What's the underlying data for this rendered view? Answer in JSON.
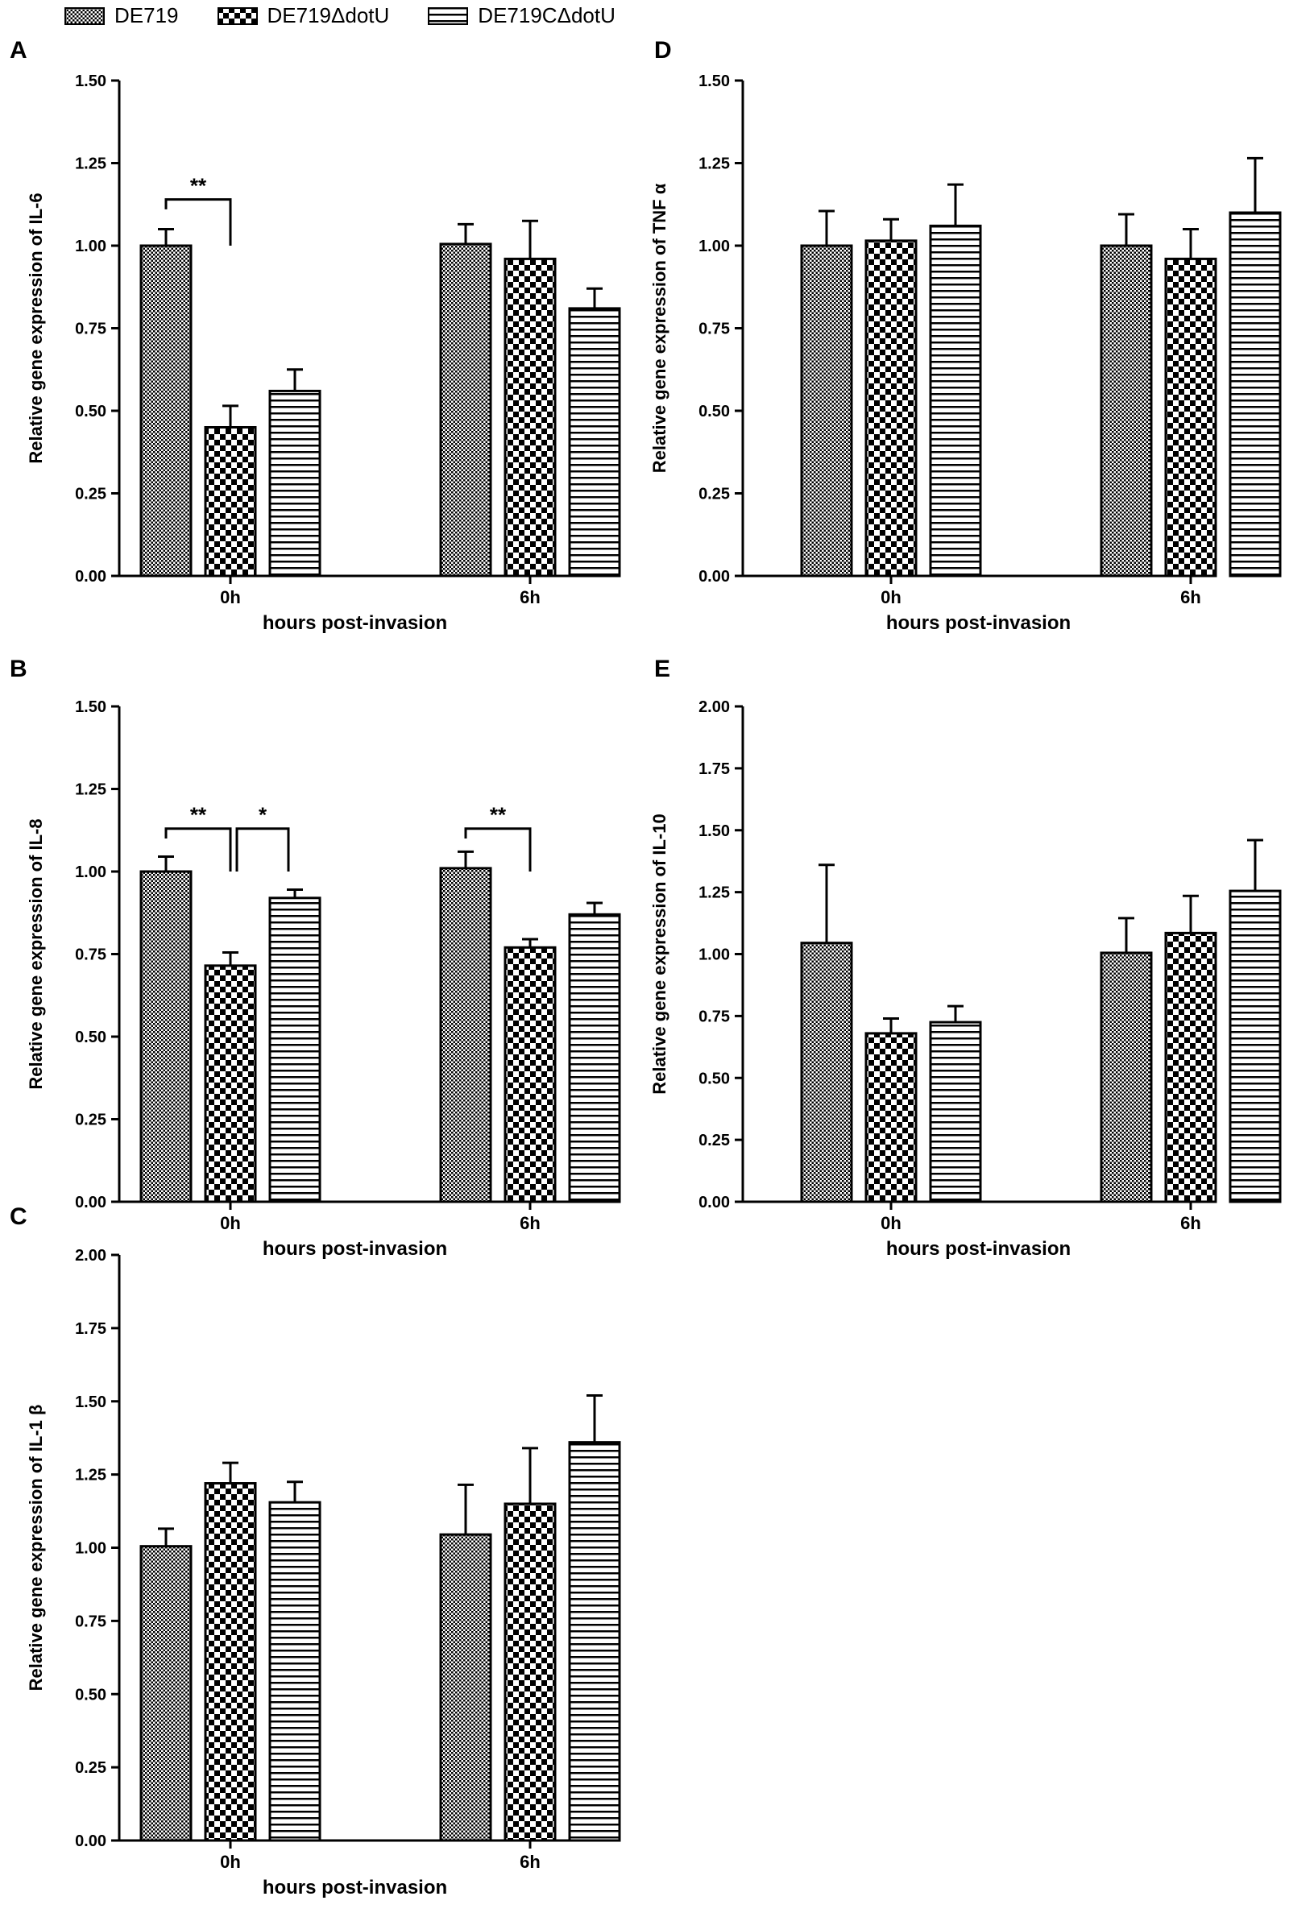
{
  "legend": [
    {
      "label": "DE719",
      "pattern": "dotted"
    },
    {
      "label": "DE719ΔdotU",
      "pattern": "checker"
    },
    {
      "label": "DE719CΔdotU",
      "pattern": "hlines"
    }
  ],
  "colors": {
    "bar_outline": "#000000",
    "background": "#ffffff"
  },
  "chart_data": [
    {
      "panel": "A",
      "type": "bar",
      "ylabel": "Relative gene expression of IL-6",
      "xlabel": "hours post-invasion",
      "categories": [
        "0h",
        "6h"
      ],
      "ylim": [
        0,
        1.5
      ],
      "yticks": [
        "0.00",
        "0.25",
        "0.50",
        "0.75",
        "1.00",
        "1.25",
        "1.50"
      ],
      "series": [
        {
          "name": "DE719",
          "values": [
            1.0,
            1.005
          ],
          "errors": [
            0.05,
            0.06
          ]
        },
        {
          "name": "DE719ΔdotU",
          "values": [
            0.45,
            0.96
          ],
          "errors": [
            0.065,
            0.115
          ]
        },
        {
          "name": "DE719CΔdotU",
          "values": [
            0.56,
            0.81
          ],
          "errors": [
            0.065,
            0.06
          ]
        }
      ],
      "significance": [
        {
          "category": 0,
          "from": 0,
          "to": 1,
          "label": "**",
          "y": 1.14,
          "drop_right": 1.0
        }
      ]
    },
    {
      "panel": "B",
      "type": "bar",
      "ylabel": "Relative gene expression of IL-8",
      "xlabel": "hours post-invasion",
      "categories": [
        "0h",
        "6h"
      ],
      "ylim": [
        0,
        1.5
      ],
      "yticks": [
        "0.00",
        "0.25",
        "0.50",
        "0.75",
        "1.00",
        "1.25",
        "1.50"
      ],
      "series": [
        {
          "name": "DE719",
          "values": [
            1.0,
            1.01
          ],
          "errors": [
            0.045,
            0.05
          ]
        },
        {
          "name": "DE719ΔdotU",
          "values": [
            0.715,
            0.77
          ],
          "errors": [
            0.04,
            0.025
          ]
        },
        {
          "name": "DE719CΔdotU",
          "values": [
            0.92,
            0.87
          ],
          "errors": [
            0.025,
            0.035
          ]
        }
      ],
      "significance": [
        {
          "category": 0,
          "from": 0,
          "to": 1,
          "label": "**",
          "y": 1.13,
          "drop_right": 1.0
        },
        {
          "category": 0,
          "from": 1,
          "to": 2,
          "label": "*",
          "y": 1.13,
          "drop_left": 1.0,
          "drop_right": 1.0
        },
        {
          "category": 1,
          "from": 0,
          "to": 1,
          "label": "**",
          "y": 1.13,
          "drop_right": 1.0
        }
      ]
    },
    {
      "panel": "C",
      "type": "bar",
      "ylabel": "Relative gene expression of IL-1 β",
      "xlabel": "hours post-invasion",
      "categories": [
        "0h",
        "6h"
      ],
      "ylim": [
        0,
        2.0
      ],
      "yticks": [
        "0.00",
        "0.25",
        "0.50",
        "0.75",
        "1.00",
        "1.25",
        "1.50",
        "1.75",
        "2.00"
      ],
      "series": [
        {
          "name": "DE719",
          "values": [
            1.005,
            1.045
          ],
          "errors": [
            0.06,
            0.17
          ]
        },
        {
          "name": "DE719ΔdotU",
          "values": [
            1.22,
            1.15
          ],
          "errors": [
            0.07,
            0.19
          ]
        },
        {
          "name": "DE719CΔdotU",
          "values": [
            1.155,
            1.36
          ],
          "errors": [
            0.07,
            0.16
          ]
        }
      ],
      "significance": []
    },
    {
      "panel": "D",
      "type": "bar",
      "ylabel": "Relative gene expression of TNF α",
      "xlabel": "hours post-invasion",
      "categories": [
        "0h",
        "6h"
      ],
      "ylim": [
        0,
        1.5
      ],
      "yticks": [
        "0.00",
        "0.25",
        "0.50",
        "0.75",
        "1.00",
        "1.25",
        "1.50"
      ],
      "series": [
        {
          "name": "DE719",
          "values": [
            1.0,
            1.0
          ],
          "errors": [
            0.105,
            0.095
          ]
        },
        {
          "name": "DE719ΔdotU",
          "values": [
            1.015,
            0.96
          ],
          "errors": [
            0.065,
            0.09
          ]
        },
        {
          "name": "DE719CΔdotU",
          "values": [
            1.06,
            1.1
          ],
          "errors": [
            0.125,
            0.165
          ]
        }
      ],
      "significance": []
    },
    {
      "panel": "E",
      "type": "bar",
      "ylabel": "Relative gene expression of IL-10",
      "xlabel": "hours post-invasion",
      "categories": [
        "0h",
        "6h"
      ],
      "ylim": [
        0,
        2.0
      ],
      "yticks": [
        "0.00",
        "0.25",
        "0.50",
        "0.75",
        "1.00",
        "1.25",
        "1.50",
        "1.75",
        "2.00"
      ],
      "series": [
        {
          "name": "DE719",
          "values": [
            1.045,
            1.005
          ],
          "errors": [
            0.315,
            0.14
          ]
        },
        {
          "name": "DE719ΔdotU",
          "values": [
            0.68,
            1.085
          ],
          "errors": [
            0.06,
            0.15
          ]
        },
        {
          "name": "DE719CΔdotU",
          "values": [
            0.725,
            1.255
          ],
          "errors": [
            0.065,
            0.205
          ]
        }
      ],
      "significance": []
    }
  ]
}
